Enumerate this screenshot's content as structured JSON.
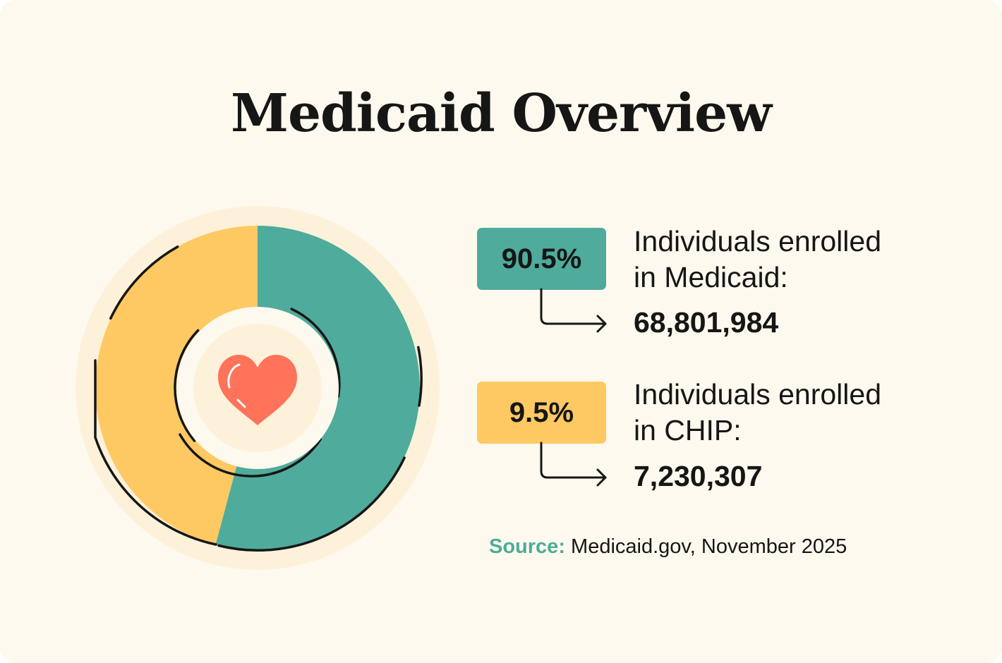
{
  "title": "Medicaid Overview",
  "chart_data": {
    "type": "pie",
    "style": "donut",
    "center_icon": "heart-icon",
    "slices": [
      {
        "key": "medicaid",
        "percent_label": "90.5%",
        "label_line1": "Individuals enrolled",
        "label_line2": "in Medicaid:",
        "count": "68,801,984",
        "color": "#4fab9b"
      },
      {
        "key": "chip",
        "percent_label": "9.5%",
        "label_line1": "Individuals enrolled",
        "label_line2": "in CHIP:",
        "count": "7,230,307",
        "color": "#fec963"
      }
    ]
  },
  "source": {
    "key": "Source:",
    "text": " Medicaid.gov, November 2025"
  },
  "colors": {
    "background": "#fef9ee",
    "halo": "#fdf1da",
    "outline": "#161616",
    "heart": "#ff735a",
    "accent_text": "#4fab9b"
  }
}
